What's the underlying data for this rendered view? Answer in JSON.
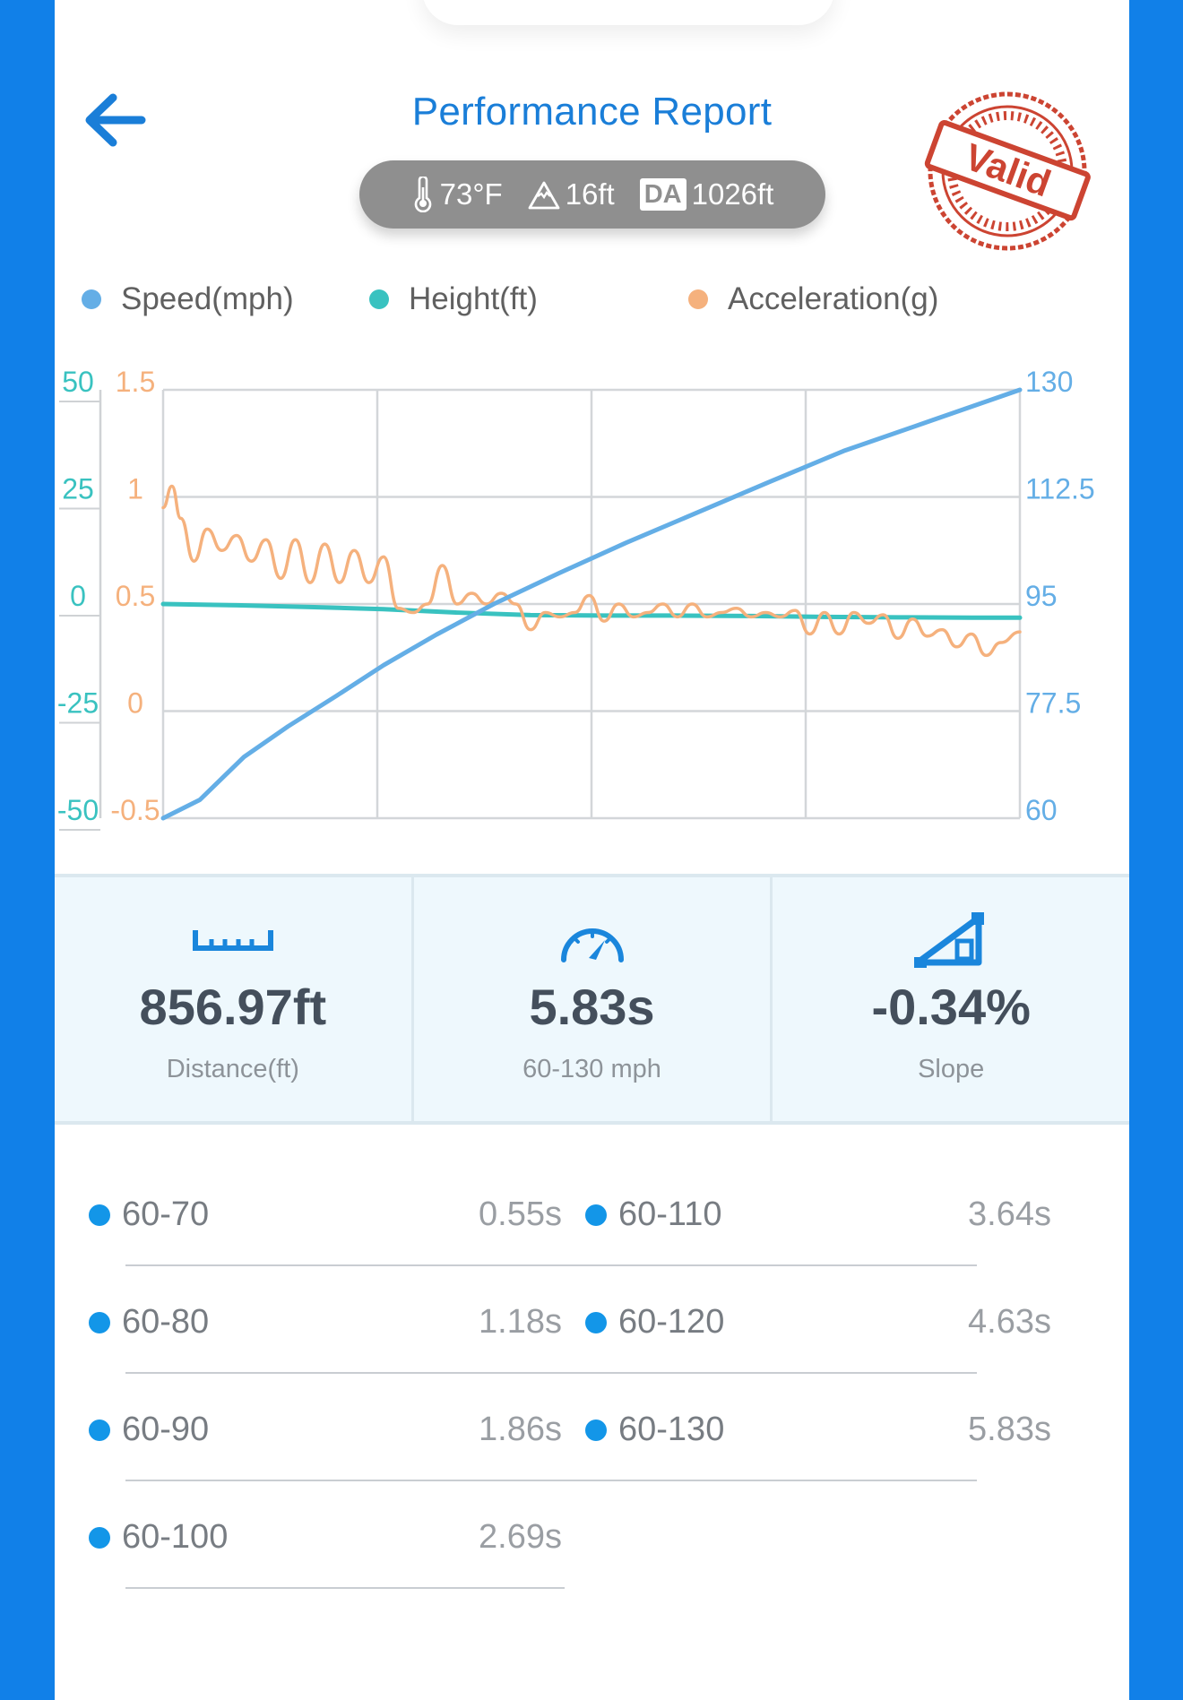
{
  "header": {
    "title": "Performance Report",
    "back_icon": "arrow-left-icon",
    "stamp_text": "Valid",
    "accent_color": "#1a7ed8"
  },
  "conditions": {
    "temperature": "73°F",
    "elevation": "16ft",
    "density_altitude_badge": "DA",
    "density_altitude": "1026ft"
  },
  "legend": [
    {
      "label": "Speed(mph)",
      "color": "#64aee6"
    },
    {
      "label": "Height(ft)",
      "color": "#39c2c0"
    },
    {
      "label": "Acceleration(g)",
      "color": "#f5b17d"
    }
  ],
  "chart_data": {
    "type": "line",
    "x_range": [
      0,
      5.83
    ],
    "series": [
      {
        "name": "Speed(mph)",
        "axis": "right",
        "color": "#64aee6",
        "x": [
          0,
          0.25,
          0.55,
          0.85,
          1.18,
          1.5,
          1.86,
          2.25,
          2.69,
          3.15,
          3.64,
          4.13,
          4.63,
          5.23,
          5.83
        ],
        "y": [
          60,
          63,
          70,
          75,
          80,
          85,
          90,
          95,
          100,
          105,
          110,
          115,
          120,
          125,
          130
        ]
      },
      {
        "name": "Height(ft)",
        "axis": "left-height",
        "color": "#39c2c0",
        "x": [
          0,
          0.5,
          1.0,
          1.5,
          2.0,
          2.5,
          3.0,
          3.5,
          4.0,
          4.5,
          5.0,
          5.5,
          5.83
        ],
        "y": [
          0,
          -0.3,
          -0.7,
          -1.2,
          -2.0,
          -2.6,
          -2.7,
          -2.7,
          -2.8,
          -3.0,
          -3.1,
          -3.2,
          -3.2
        ]
      },
      {
        "name": "Acceleration(g)",
        "axis": "left-accel",
        "color": "#f5b17d",
        "x": [
          0,
          0.06,
          0.12,
          0.21,
          0.3,
          0.4,
          0.5,
          0.6,
          0.7,
          0.8,
          0.9,
          1.0,
          1.1,
          1.2,
          1.3,
          1.4,
          1.5,
          1.6,
          1.7,
          1.8,
          1.9,
          2.0,
          2.1,
          2.2,
          2.3,
          2.4,
          2.5,
          2.6,
          2.7,
          2.8,
          2.9,
          3.0,
          3.1,
          3.2,
          3.3,
          3.4,
          3.5,
          3.6,
          3.7,
          3.8,
          3.9,
          4.0,
          4.1,
          4.2,
          4.3,
          4.4,
          4.5,
          4.6,
          4.7,
          4.8,
          4.9,
          5.0,
          5.1,
          5.2,
          5.3,
          5.4,
          5.5,
          5.6,
          5.7,
          5.83
        ],
        "y": [
          0.95,
          1.05,
          0.9,
          0.7,
          0.85,
          0.75,
          0.82,
          0.7,
          0.8,
          0.62,
          0.8,
          0.6,
          0.78,
          0.6,
          0.75,
          0.6,
          0.72,
          0.48,
          0.46,
          0.5,
          0.68,
          0.5,
          0.55,
          0.5,
          0.55,
          0.5,
          0.38,
          0.46,
          0.44,
          0.46,
          0.54,
          0.42,
          0.5,
          0.44,
          0.46,
          0.5,
          0.44,
          0.5,
          0.44,
          0.46,
          0.48,
          0.44,
          0.46,
          0.44,
          0.47,
          0.36,
          0.46,
          0.36,
          0.46,
          0.41,
          0.45,
          0.34,
          0.43,
          0.35,
          0.38,
          0.3,
          0.36,
          0.26,
          0.32,
          0.37
        ]
      }
    ],
    "axes": {
      "left_height": {
        "ticks": [
          "50",
          "25",
          "0",
          "-25",
          "-50"
        ],
        "range": [
          -50,
          50
        ],
        "color": "#39c2c0"
      },
      "left_accel": {
        "ticks": [
          "1.5",
          "1",
          "0.5",
          "0",
          "-0.5"
        ],
        "range": [
          -0.5,
          1.5
        ],
        "color": "#f5b17d"
      },
      "right_speed": {
        "ticks": [
          "130",
          "112.5",
          "95",
          "77.5",
          "60"
        ],
        "range": [
          60,
          130
        ],
        "color": "#64aee6"
      }
    },
    "grid": true,
    "legend_position": "top"
  },
  "stats": [
    {
      "icon": "ruler-icon",
      "value": "856.97ft",
      "label": "Distance(ft)"
    },
    {
      "icon": "speedometer-icon",
      "value": "5.83s",
      "label": "60-130 mph"
    },
    {
      "icon": "slope-icon",
      "value": "-0.34%",
      "label": "Slope"
    }
  ],
  "splits": [
    {
      "label": "60-70",
      "time": "0.55s"
    },
    {
      "label": "60-80",
      "time": "1.18s"
    },
    {
      "label": "60-90",
      "time": "1.86s"
    },
    {
      "label": "60-100",
      "time": "2.69s"
    },
    {
      "label": "60-110",
      "time": "3.64s"
    },
    {
      "label": "60-120",
      "time": "4.63s"
    },
    {
      "label": "60-130",
      "time": "5.83s"
    }
  ]
}
